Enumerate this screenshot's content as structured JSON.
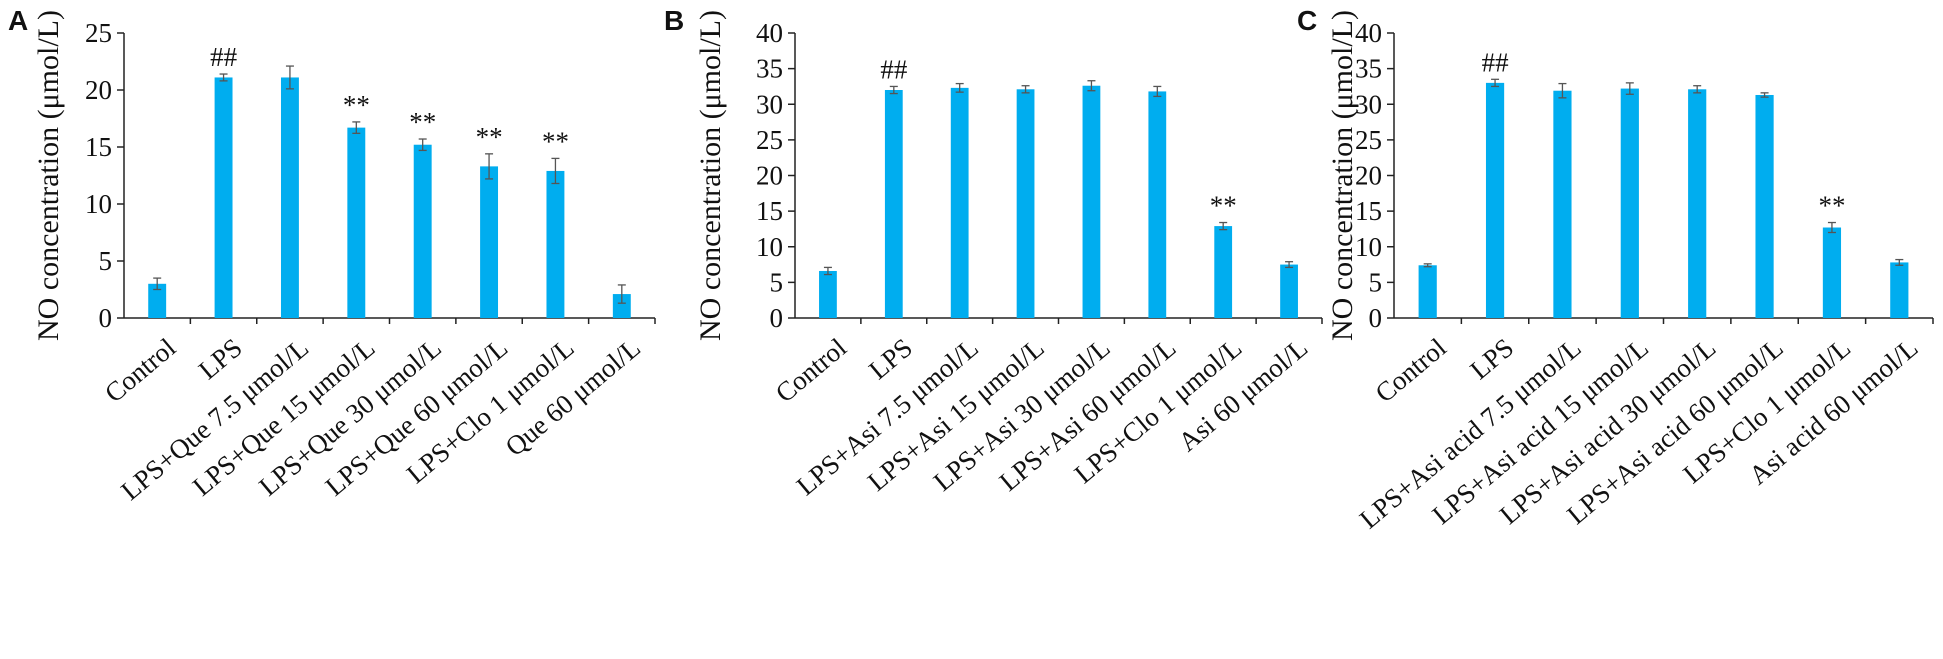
{
  "bar_color": "#00adef",
  "error_bar_color": "#555555",
  "axis_color": "#222222",
  "chart_data": [
    {
      "type": "bar",
      "panel": "A",
      "ylabel": "NO concentration (μmol/L)",
      "ylim": [
        0,
        25
      ],
      "yticks": [
        0,
        5,
        10,
        15,
        20,
        25
      ],
      "categories": [
        "Control",
        "LPS",
        "LPS+Que 7.5 μmol/L",
        "LPS+Que 15 μmol/L",
        "LPS+Que 30 μmol/L",
        "LPS+Que 60 μmol/L",
        "LPS+Clo 1 μmol/L",
        "Que 60 μmol/L"
      ],
      "values": [
        3.0,
        21.1,
        21.1,
        16.7,
        15.2,
        13.3,
        12.9,
        2.1
      ],
      "errors": [
        0.5,
        0.3,
        1.0,
        0.5,
        0.5,
        1.1,
        1.1,
        0.8
      ],
      "annotations": [
        "",
        "##",
        "",
        "**",
        "**",
        "**",
        "**",
        ""
      ]
    },
    {
      "type": "bar",
      "panel": "B",
      "ylabel": "NO concentration (μmol/L)",
      "ylim": [
        0,
        40
      ],
      "yticks": [
        0,
        5,
        10,
        15,
        20,
        25,
        30,
        35,
        40
      ],
      "categories": [
        "Control",
        "LPS",
        "LPS+Asi 7.5 μmol/L",
        "LPS+Asi 15 μmol/L",
        "LPS+Asi 30 μmol/L",
        "LPS+Asi 60 μmol/L",
        "LPS+Clo 1 μmol/L",
        "Asi 60 μmol/L"
      ],
      "values": [
        6.6,
        32.0,
        32.3,
        32.1,
        32.6,
        31.8,
        12.9,
        7.5
      ],
      "errors": [
        0.5,
        0.5,
        0.6,
        0.5,
        0.7,
        0.7,
        0.5,
        0.4
      ],
      "annotations": [
        "",
        "##",
        "",
        "",
        "",
        "",
        "**",
        ""
      ]
    },
    {
      "type": "bar",
      "panel": "C",
      "ylabel": "NO concentration (μmol/L)",
      "ylim": [
        0,
        40
      ],
      "yticks": [
        0,
        5,
        10,
        15,
        20,
        25,
        30,
        35,
        40
      ],
      "categories": [
        "Control",
        "LPS",
        "LPS+Asi acid 7.5 μmol/L",
        "LPS+Asi acid 15 μmol/L",
        "LPS+Asi acid 30 μmol/L",
        "LPS+Asi acid 60 μmol/L",
        "LPS+Clo 1 μmol/L",
        "Asi acid 60 μmol/L"
      ],
      "values": [
        7.4,
        33.0,
        31.9,
        32.2,
        32.1,
        31.3,
        12.7,
        7.8
      ],
      "errors": [
        0.2,
        0.5,
        1.0,
        0.8,
        0.5,
        0.3,
        0.7,
        0.4
      ],
      "annotations": [
        "",
        "##",
        "",
        "",
        "",
        "",
        "**",
        ""
      ]
    }
  ]
}
